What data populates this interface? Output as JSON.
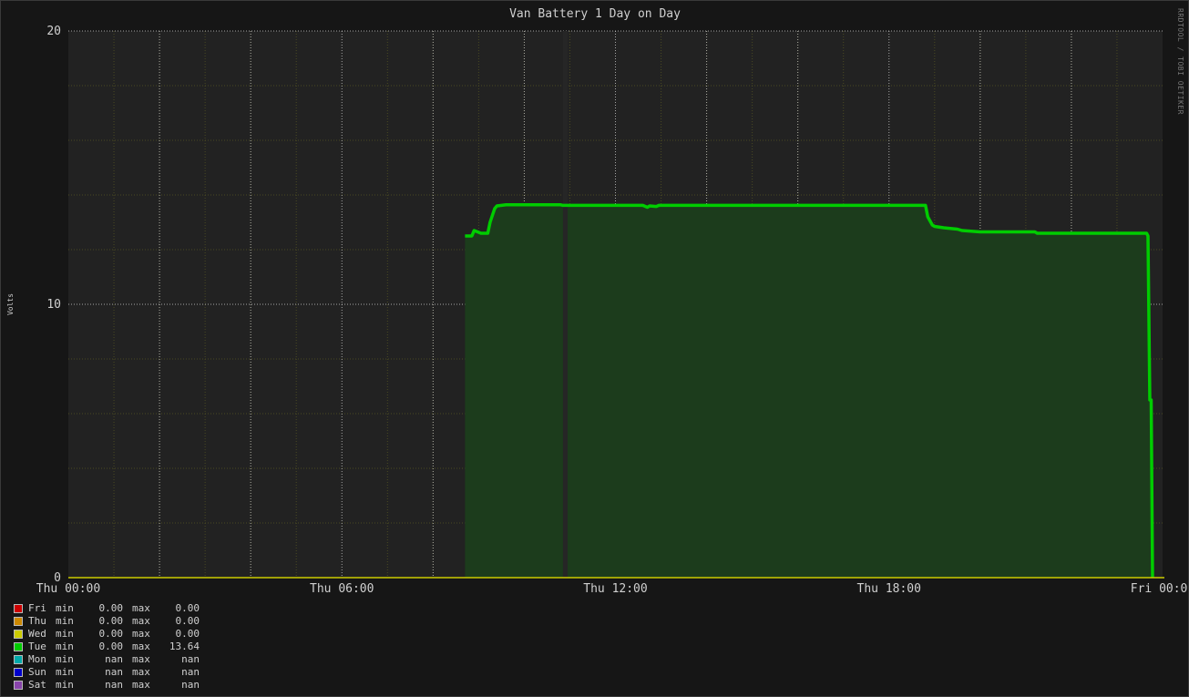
{
  "chart_data": {
    "type": "area",
    "title": "Van Battery 1 Day on Day",
    "ylabel": "Volts",
    "xlabel": "",
    "ylim": [
      0,
      20
    ],
    "xlim_hours": [
      0,
      24
    ],
    "y_ticks": [
      0,
      10,
      20
    ],
    "x_tick_labels": [
      {
        "hour": 0,
        "label": "Thu 00:00"
      },
      {
        "hour": 6,
        "label": "Thu 06:00"
      },
      {
        "hour": 12,
        "label": "Thu 12:00"
      },
      {
        "hour": 18,
        "label": "Thu 18:00"
      },
      {
        "hour": 24,
        "label": "Fri 00:00"
      }
    ],
    "grid": true,
    "legend_position": "bottom-left",
    "series": [
      {
        "name": "Tue",
        "color": "#00cc00",
        "x": [
          8.7,
          8.85,
          8.9,
          9.05,
          9.15,
          9.2,
          9.25,
          9.35,
          9.4,
          9.5,
          9.6,
          10.5,
          10.8,
          10.85,
          12.6,
          12.7,
          12.75,
          12.9,
          12.95,
          18.8,
          18.85,
          18.95,
          19.0,
          19.2,
          19.5,
          19.6,
          20.0,
          21.2,
          21.25,
          23.65,
          23.68,
          23.72,
          23.75,
          23.78
        ],
        "y": [
          12.5,
          12.5,
          12.7,
          12.6,
          12.6,
          12.6,
          13.0,
          13.5,
          13.6,
          13.62,
          13.64,
          13.64,
          13.64,
          13.62,
          13.62,
          13.55,
          13.6,
          13.58,
          13.62,
          13.62,
          13.2,
          12.9,
          12.85,
          12.8,
          12.75,
          12.7,
          12.65,
          12.65,
          12.6,
          12.6,
          12.5,
          6.5,
          6.5,
          0
        ]
      }
    ],
    "dropout": {
      "hour": 10.85,
      "width_hours": 0.1
    },
    "legend": [
      {
        "name": "Fri",
        "color": "#cc0000",
        "min_label": "min",
        "min": "0.00",
        "max_label": "max",
        "max": "0.00"
      },
      {
        "name": "Thu",
        "color": "#cc8800",
        "min_label": "min",
        "min": "0.00",
        "max_label": "max",
        "max": "0.00"
      },
      {
        "name": "Wed",
        "color": "#cccc00",
        "min_label": "min",
        "min": "0.00",
        "max_label": "max",
        "max": "0.00"
      },
      {
        "name": "Tue",
        "color": "#00cc00",
        "min_label": "min",
        "min": "0.00",
        "max_label": "max",
        "max": "13.64"
      },
      {
        "name": "Mon",
        "color": "#00aaaa",
        "min_label": "min",
        "min": "nan",
        "max_label": "max",
        "max": "nan"
      },
      {
        "name": "Sun",
        "color": "#0000cc",
        "min_label": "min",
        "min": "nan",
        "max_label": "max",
        "max": "nan"
      },
      {
        "name": "Sat",
        "color": "#8844aa",
        "min_label": "min",
        "min": "nan",
        "max_label": "max",
        "max": "nan"
      }
    ],
    "baseline_color": "#cccc00"
  },
  "watermark": "RRDTOOL / TOBI OETIKER"
}
